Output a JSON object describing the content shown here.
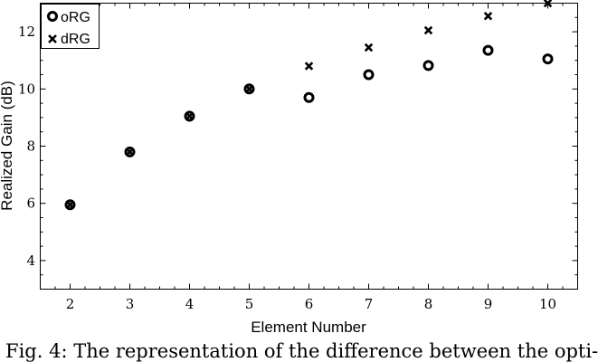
{
  "chart_data": {
    "type": "scatter",
    "xlabel": "Element Number",
    "ylabel": "Realized Gain (dB)",
    "xlim": [
      1.5,
      10.5
    ],
    "ylim": [
      3.0,
      13.0
    ],
    "xticks": [
      2,
      3,
      4,
      5,
      6,
      7,
      8,
      9,
      10
    ],
    "yticks": [
      4,
      6,
      8,
      10,
      12
    ],
    "grid": false,
    "legend_position": "top-left",
    "series": [
      {
        "name": "oRG",
        "marker": "open-circle",
        "x": [
          2,
          3,
          4,
          5,
          6,
          7,
          8,
          9,
          10
        ],
        "y": [
          5.95,
          7.8,
          9.05,
          10.0,
          9.7,
          10.5,
          10.82,
          11.35,
          11.05
        ]
      },
      {
        "name": "dRG",
        "marker": "x",
        "x": [
          2,
          3,
          4,
          5,
          6,
          7,
          8,
          9,
          10
        ],
        "y": [
          5.95,
          7.8,
          9.05,
          10.0,
          10.8,
          11.45,
          12.05,
          12.55,
          13.0
        ]
      }
    ]
  },
  "caption": "Fig. 4: The representation of the difference between the opti-"
}
